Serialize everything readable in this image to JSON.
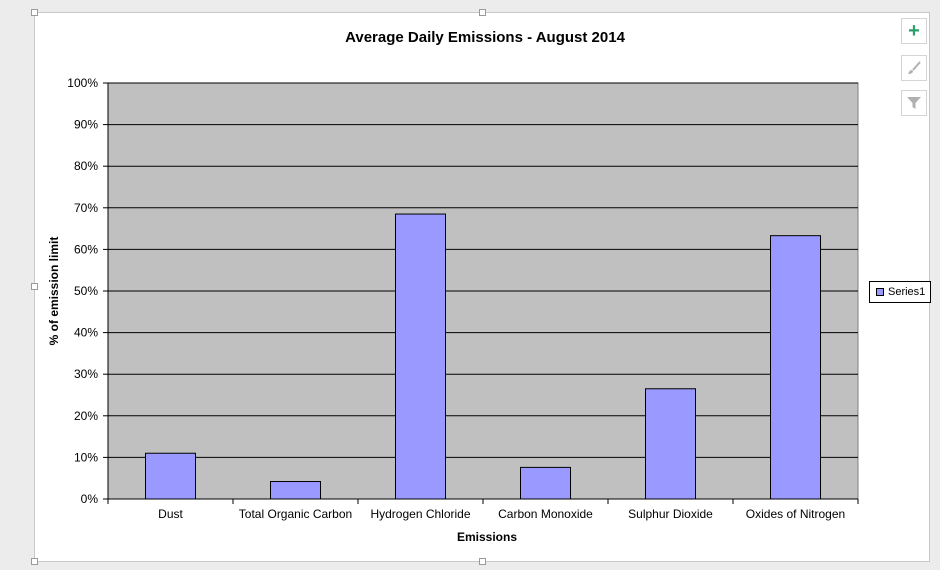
{
  "chart_data": {
    "type": "bar",
    "title": "Average Daily Emissions - August 2014",
    "xlabel": "Emissions",
    "ylabel": "% of emission limit",
    "categories": [
      "Dust",
      "Total Organic Carbon",
      "Hydrogen Chloride",
      "Carbon Monoxide",
      "Sulphur Dioxide",
      "Oxides of Nitrogen"
    ],
    "series": [
      {
        "name": "Series1",
        "values": [
          11,
          4.2,
          68.5,
          7.6,
          26.5,
          63.3
        ]
      }
    ],
    "ylim": [
      0,
      100
    ],
    "yticks": [
      "0%",
      "10%",
      "20%",
      "30%",
      "40%",
      "50%",
      "60%",
      "70%",
      "80%",
      "90%",
      "100%"
    ],
    "grid": true,
    "legend_position": "right",
    "colors": {
      "bar": "#9999ff",
      "plot_background": "#c0c0c0",
      "gridline": "#000000"
    }
  },
  "chart_tools": {
    "add_element_icon": "plus-icon",
    "style_icon": "paintbrush-icon",
    "filter_icon": "filter-icon"
  }
}
